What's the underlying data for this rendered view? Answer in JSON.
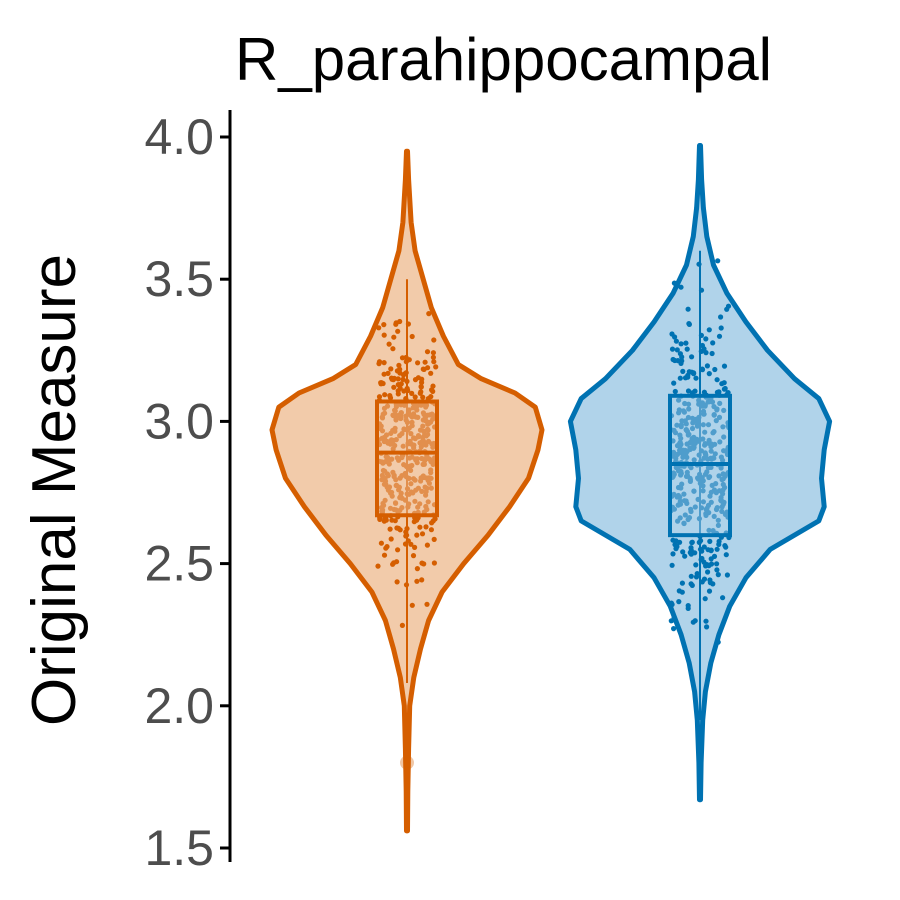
{
  "chart_data": {
    "type": "violin",
    "title": "R_parahippocampal",
    "xlabel": "",
    "ylabel": "Original Measure",
    "ylim": [
      1.5,
      4.05
    ],
    "yticks": [
      "1.5",
      "2.0",
      "2.5",
      "3.0",
      "3.5",
      "4.0"
    ],
    "grid": false,
    "legend": "none",
    "groups": [
      {
        "color": "#d55e00",
        "fill": "#f2cbaa",
        "min": 1.56,
        "max": 3.95,
        "box": {
          "q1": 2.67,
          "median": 2.89,
          "q3": 3.07,
          "whisker_low": 2.08,
          "whisker_high": 3.5
        },
        "outliers": [
          1.8
        ],
        "density": [
          [
            1.56,
            0.004
          ],
          [
            1.7,
            0.006
          ],
          [
            1.85,
            0.012
          ],
          [
            2.0,
            0.02
          ],
          [
            2.1,
            0.05
          ],
          [
            2.2,
            0.1
          ],
          [
            2.3,
            0.16
          ],
          [
            2.4,
            0.26
          ],
          [
            2.5,
            0.42
          ],
          [
            2.6,
            0.6
          ],
          [
            2.7,
            0.76
          ],
          [
            2.8,
            0.9
          ],
          [
            2.9,
            0.97
          ],
          [
            2.97,
            1.0
          ],
          [
            3.05,
            0.95
          ],
          [
            3.1,
            0.8
          ],
          [
            3.15,
            0.55
          ],
          [
            3.2,
            0.38
          ],
          [
            3.3,
            0.27
          ],
          [
            3.4,
            0.18
          ],
          [
            3.5,
            0.12
          ],
          [
            3.6,
            0.06
          ],
          [
            3.7,
            0.03
          ],
          [
            3.85,
            0.012
          ],
          [
            3.95,
            0.004
          ]
        ]
      },
      {
        "color": "#0072b2",
        "fill": "#b0d3ea",
        "min": 1.67,
        "max": 3.97,
        "box": {
          "q1": 2.6,
          "median": 2.85,
          "q3": 3.09,
          "whisker_low": 1.95,
          "whisker_high": 3.6
        },
        "outliers": [],
        "density": [
          [
            1.67,
            0.004
          ],
          [
            1.8,
            0.008
          ],
          [
            1.95,
            0.02
          ],
          [
            2.05,
            0.04
          ],
          [
            2.15,
            0.08
          ],
          [
            2.25,
            0.14
          ],
          [
            2.35,
            0.22
          ],
          [
            2.45,
            0.34
          ],
          [
            2.55,
            0.52
          ],
          [
            2.65,
            0.88
          ],
          [
            2.7,
            0.92
          ],
          [
            2.8,
            0.9
          ],
          [
            2.9,
            0.92
          ],
          [
            3.0,
            0.96
          ],
          [
            3.08,
            0.88
          ],
          [
            3.15,
            0.7
          ],
          [
            3.25,
            0.5
          ],
          [
            3.35,
            0.34
          ],
          [
            3.45,
            0.2
          ],
          [
            3.55,
            0.1
          ],
          [
            3.65,
            0.05
          ],
          [
            3.75,
            0.025
          ],
          [
            3.85,
            0.012
          ],
          [
            3.97,
            0.004
          ]
        ]
      }
    ]
  }
}
